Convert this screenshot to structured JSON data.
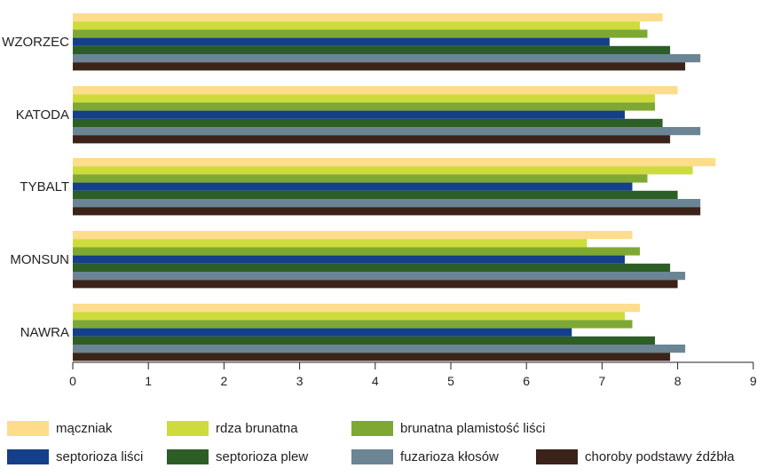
{
  "chart_data": {
    "type": "bar",
    "orientation": "horizontal",
    "categories": [
      "WZORZEC",
      "KATODA",
      "TYBALT",
      "MONSUN",
      "NAWRA"
    ],
    "x_ticks": [
      "0",
      "1",
      "2",
      "3",
      "4",
      "5",
      "6",
      "7",
      "8",
      "9"
    ],
    "xlim": [
      0,
      9
    ],
    "grid": false,
    "legend_position": "bottom",
    "series": [
      {
        "name": "mączniak",
        "color": "#fddc8c",
        "values": [
          7.8,
          8.0,
          8.5,
          7.4,
          7.5
        ]
      },
      {
        "name": "rdza brunatna",
        "color": "#cddc3c",
        "values": [
          7.5,
          7.7,
          8.2,
          6.8,
          7.3
        ]
      },
      {
        "name": "brunatna plamistość liści",
        "color": "#7ea833",
        "values": [
          7.6,
          7.7,
          7.6,
          7.5,
          7.4
        ]
      },
      {
        "name": "septorioza liści",
        "color": "#143f8a",
        "values": [
          7.1,
          7.3,
          7.4,
          7.3,
          6.6
        ]
      },
      {
        "name": "septorioza plew",
        "color": "#2d5e26",
        "values": [
          7.9,
          7.8,
          8.0,
          7.9,
          7.7
        ]
      },
      {
        "name": "fuzarioza kłosów",
        "color": "#6b8594",
        "values": [
          8.3,
          8.3,
          8.3,
          8.1,
          8.1
        ]
      },
      {
        "name": "choroby podstawy źdźbła",
        "color": "#3b2319",
        "values": [
          8.1,
          7.9,
          8.3,
          8.0,
          7.9
        ]
      }
    ]
  }
}
